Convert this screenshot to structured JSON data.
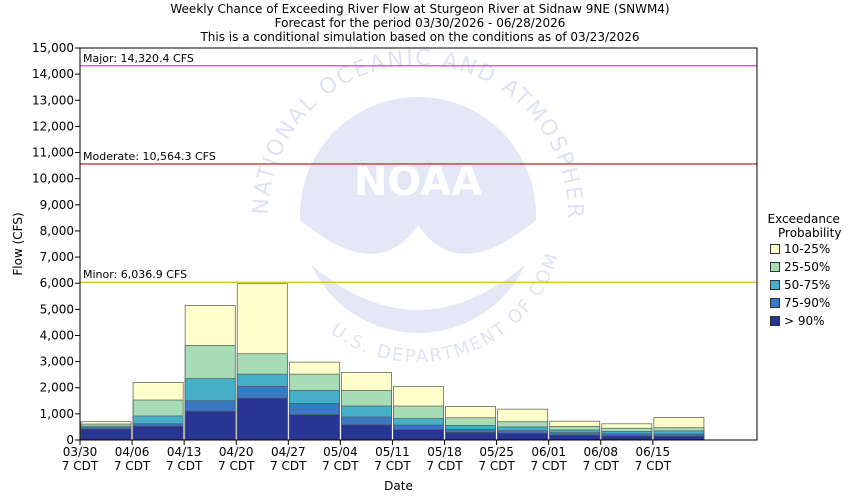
{
  "header": {
    "title": "Weekly Chance of Exceeding River Flow at Sturgeon River at Sidnaw 9NE (SNWM4)",
    "subtitle1": "Forecast for the period 03/30/2026 - 06/28/2026",
    "subtitle2": "This is a conditional simulation based on the conditions as of 03/23/2026"
  },
  "chart_data": {
    "type": "bar",
    "stacked": true,
    "title": "Weekly Chance of Exceeding River Flow at Sturgeon River at Sidnaw 9NE (SNWM4)",
    "xlabel": "Date",
    "ylabel": "Flow (CFS)",
    "ylim": [
      0,
      15000
    ],
    "yticks": [
      0,
      1000,
      2000,
      3000,
      4000,
      5000,
      6000,
      7000,
      8000,
      9000,
      10000,
      11000,
      12000,
      13000,
      14000,
      15000
    ],
    "ytick_labels": [
      "0",
      "1,000",
      "2,000",
      "3,000",
      "4,000",
      "5,000",
      "6,000",
      "7,000",
      "8,000",
      "9,000",
      "10,000",
      "11,000",
      "12,000",
      "13,000",
      "14,000",
      "15,000"
    ],
    "xtick_labels": [
      [
        "03/30",
        "7 CDT"
      ],
      [
        "04/06",
        "7 CDT"
      ],
      [
        "04/13",
        "7 CDT"
      ],
      [
        "04/20",
        "7 CDT"
      ],
      [
        "04/27",
        "7 CDT"
      ],
      [
        "05/04",
        "7 CDT"
      ],
      [
        "05/11",
        "7 CDT"
      ],
      [
        "05/18",
        "7 CDT"
      ],
      [
        "05/25",
        "7 CDT"
      ],
      [
        "06/01",
        "7 CDT"
      ],
      [
        "06/08",
        "7 CDT"
      ],
      [
        "06/15",
        "7 CDT"
      ]
    ],
    "weeks": 13,
    "series": [
      {
        "name": "> 90%",
        "color": "#283593",
        "values": [
          420,
          530,
          1100,
          1600,
          970,
          580,
          400,
          290,
          260,
          190,
          160,
          150
        ]
      },
      {
        "name": "75-90%",
        "color": "#3a78c4",
        "values": [
          470,
          620,
          1500,
          2050,
          1400,
          880,
          570,
          410,
          360,
          280,
          240,
          230
        ]
      },
      {
        "name": "50-75%",
        "color": "#45b0c8",
        "values": [
          530,
          920,
          2350,
          2520,
          1900,
          1300,
          820,
          560,
          500,
          380,
          330,
          350
        ]
      },
      {
        "name": "25-50%",
        "color": "#a7dcb7",
        "values": [
          610,
          1530,
          3620,
          3300,
          2520,
          1900,
          1300,
          850,
          700,
          520,
          450,
          470
        ]
      },
      {
        "name": "10-25%",
        "color": "#ffffcc",
        "values": [
          700,
          2200,
          5150,
          5980,
          2980,
          2580,
          2050,
          1280,
          1180,
          720,
          620,
          860
        ]
      }
    ],
    "thresholds": [
      {
        "label": "Major: 14,320.4 CFS",
        "value": 14320.4,
        "color": "#cc44cc"
      },
      {
        "label": "Moderate: 10,564.3 CFS",
        "value": 10564.3,
        "color": "#cc3333"
      },
      {
        "label": "Minor: 6,036.9 CFS",
        "value": 6036.9,
        "color": "#d4c200"
      }
    ]
  },
  "legend": {
    "title_line1": "Exceedance",
    "title_line2": "Probability",
    "items": [
      {
        "label": "10-25%",
        "color": "#ffffcc"
      },
      {
        "label": "25-50%",
        "color": "#a7dcb7"
      },
      {
        "label": "50-75%",
        "color": "#45b0c8"
      },
      {
        "label": "75-90%",
        "color": "#3a78c4"
      },
      {
        "label": "> 90%",
        "color": "#283593"
      }
    ]
  },
  "watermark": {
    "agency": "NATIONAL OCEANIC AND ATMOSPHERIC ADMINISTRATION",
    "abbrev": "NOAA",
    "dept": "U.S. DEPARTMENT OF COMMERCE"
  }
}
